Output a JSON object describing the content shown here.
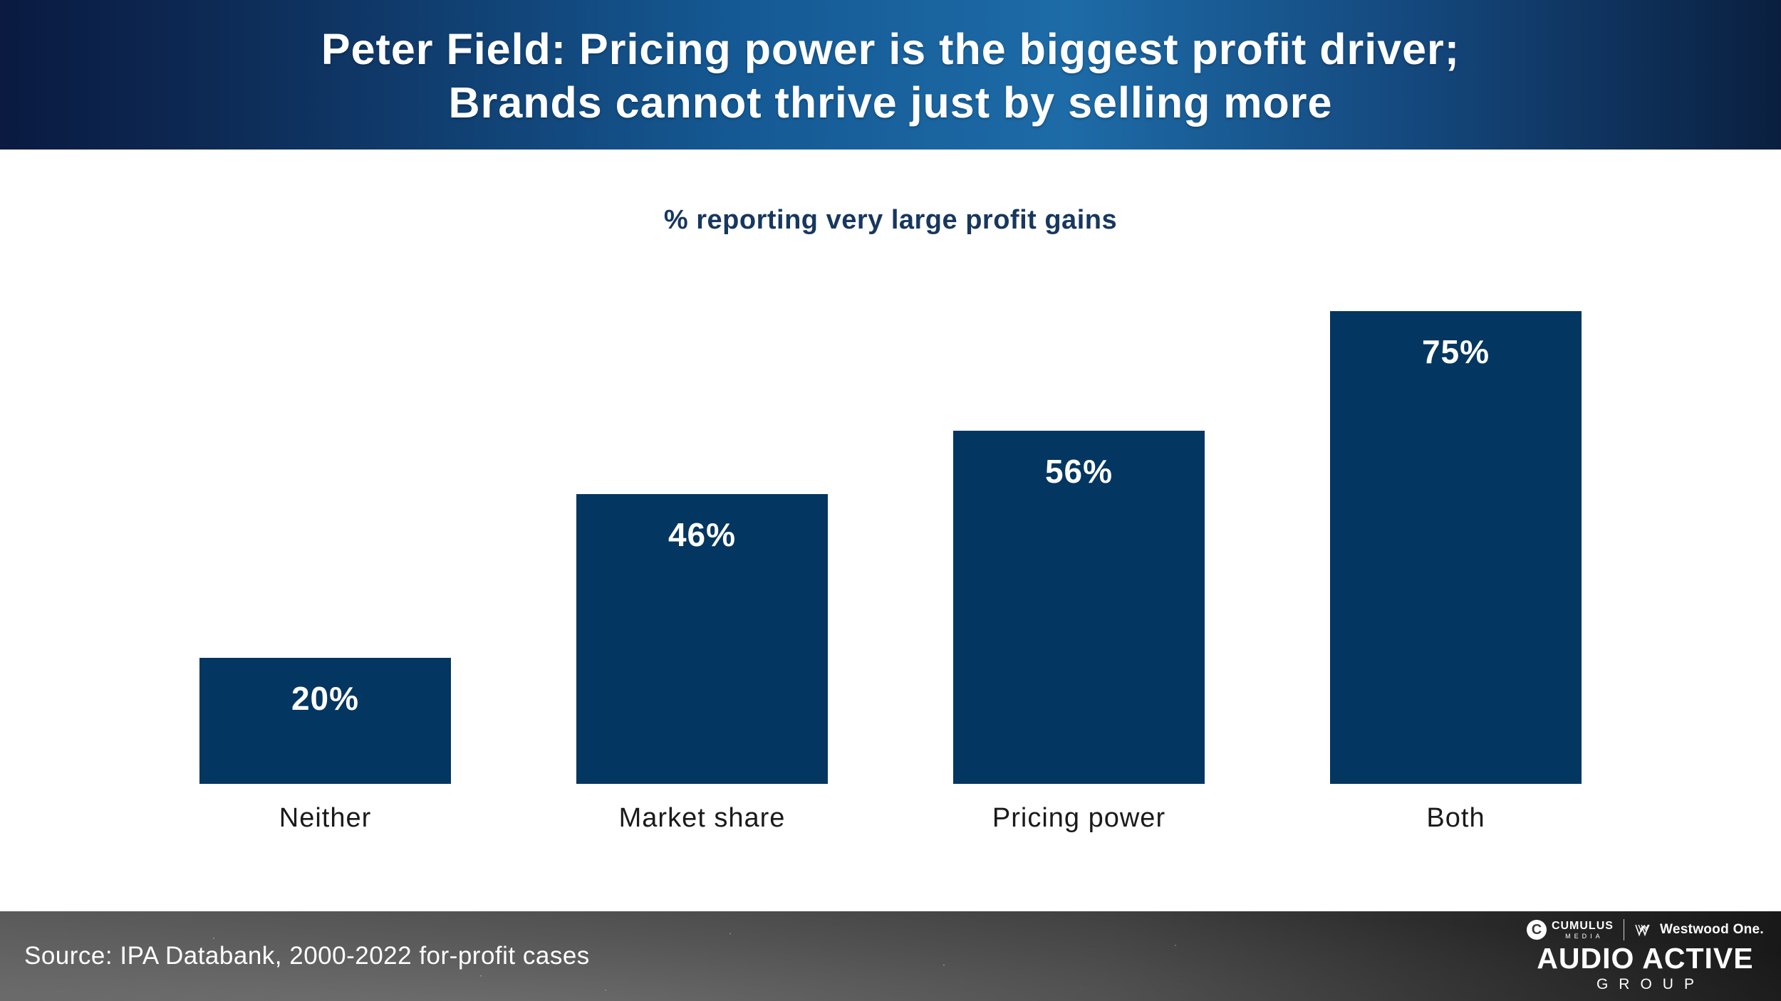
{
  "header": {
    "title_line1": "Peter Field: Pricing power is the biggest profit driver;",
    "title_line2": "Brands cannot thrive just by selling more"
  },
  "chart_data": {
    "type": "bar",
    "title": "% reporting very large profit gains",
    "categories": [
      "Neither",
      "Market share",
      "Pricing power",
      "Both"
    ],
    "values": [
      20,
      46,
      56,
      75
    ],
    "value_labels": [
      "20%",
      "46%",
      "56%",
      "75%"
    ],
    "xlabel": "",
    "ylabel": "",
    "ylim": [
      0,
      75
    ],
    "grid": false,
    "legend": "none",
    "bar_color": "#033660",
    "value_label_position": "inside-top"
  },
  "footer": {
    "source": "Source: IPA Databank, 2000-2022 for-profit cases",
    "logos": {
      "cumulus_circle_letter": "C",
      "cumulus": "CUMULUS",
      "cumulus_sub": "MEDIA",
      "westwood": "Westwood One.",
      "audio_active": "AUDIO ACTIVE",
      "group": "GROUP"
    }
  },
  "colors": {
    "header_gradient_dark": "#0a1a40",
    "header_gradient_light": "#1d6ba7",
    "bar_fill": "#033660",
    "subtitle_text": "#17375e",
    "category_text": "#1a1a1a",
    "title_text": "#ffffff",
    "footer_dark": "#232323",
    "footer_light": "#585858"
  }
}
